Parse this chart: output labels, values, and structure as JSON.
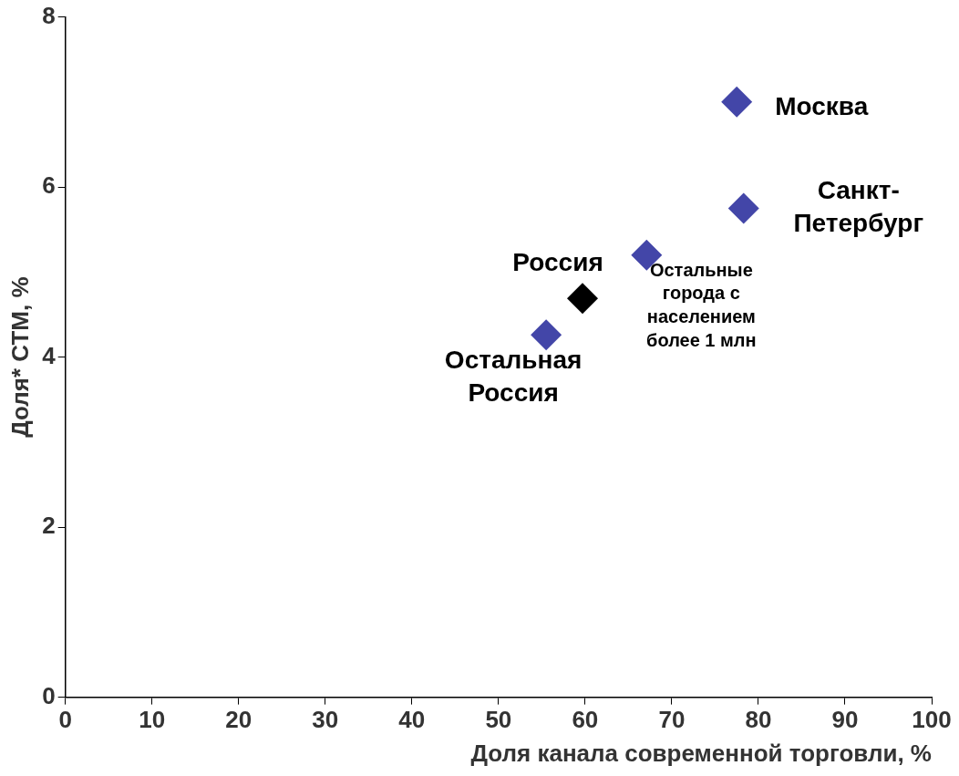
{
  "chart_data": {
    "type": "scatter",
    "xlabel": "Доля канала современной торговли, %",
    "ylabel": "Доля* СТМ, %",
    "xlim": [
      0,
      100
    ],
    "xticks": [
      0,
      10,
      20,
      30,
      40,
      50,
      60,
      70,
      80,
      90,
      100
    ],
    "ylim": [
      0,
      8
    ],
    "yticks": [
      0,
      2,
      4,
      6,
      8
    ],
    "grid": false,
    "legend": false,
    "marker": "diamond",
    "series": [
      {
        "name": "Москва",
        "color": "#4346a8",
        "x": [
          77.5
        ],
        "values": [
          7.0
        ]
      },
      {
        "name": "Санкт-Петербург",
        "color": "#4346a8",
        "x": [
          78.3
        ],
        "values": [
          5.75
        ]
      },
      {
        "name": "Остальные города с населением более 1 млн",
        "color": "#4346a8",
        "x": [
          67.1
        ],
        "values": [
          5.2
        ]
      },
      {
        "name": "Россия",
        "color": "#000000",
        "x": [
          59.7
        ],
        "values": [
          4.69
        ]
      },
      {
        "name": "Остальная Россия",
        "color": "#4346a8",
        "x": [
          55.5
        ],
        "values": [
          4.26
        ]
      }
    ]
  }
}
